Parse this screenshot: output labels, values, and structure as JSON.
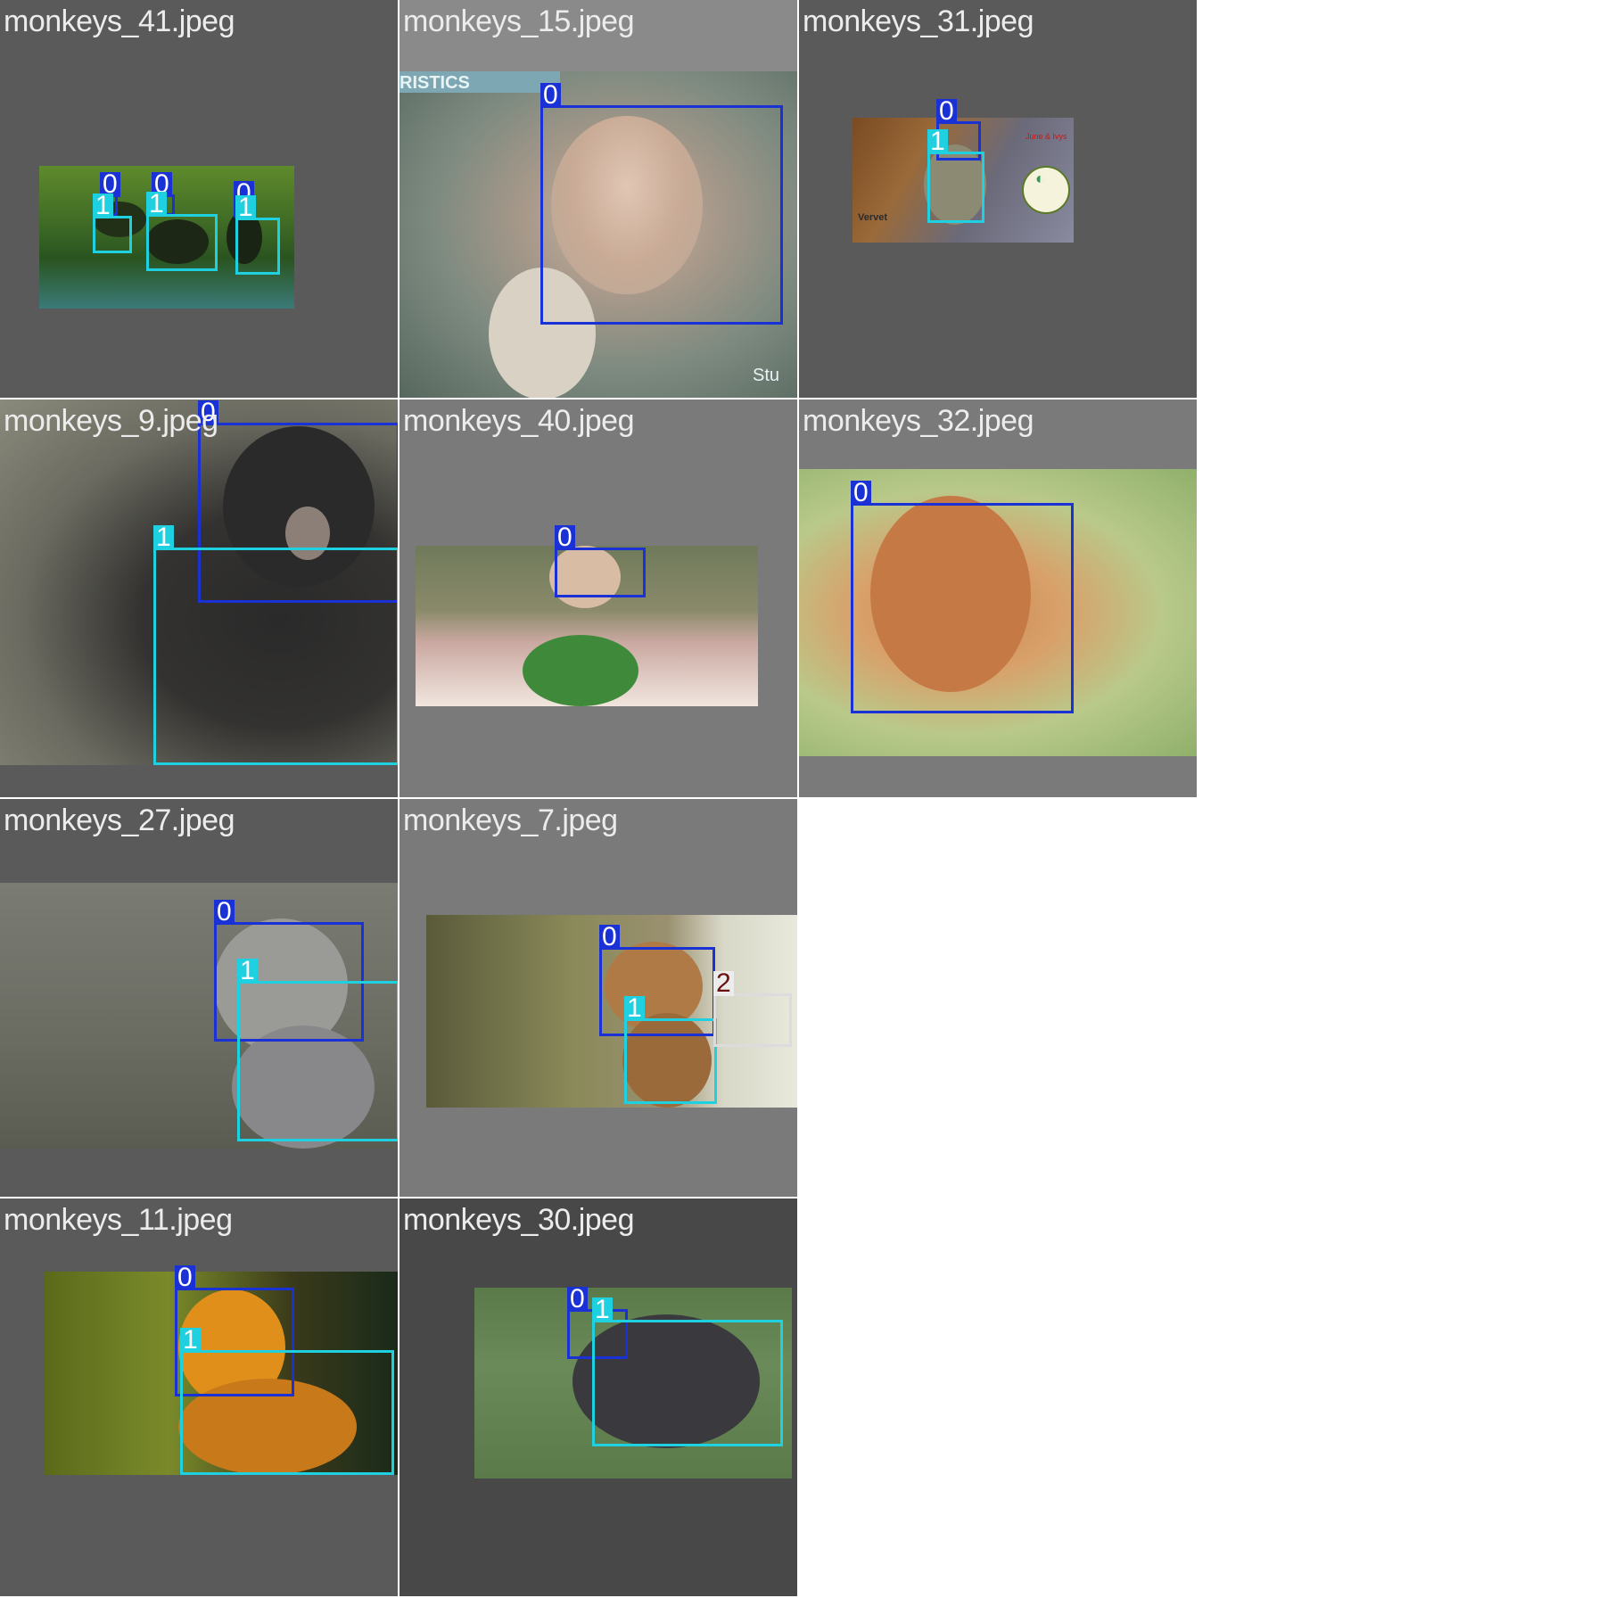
{
  "tiles": [
    {
      "title": "monkeys_41.jpeg",
      "labels": [
        "0",
        "0",
        "0",
        "1",
        "1",
        "1"
      ]
    },
    {
      "title": "monkeys_15.jpeg",
      "overlay_text": "RISTICS",
      "watermark": "Stu",
      "labels": [
        "0"
      ]
    },
    {
      "title": "monkeys_31.jpeg",
      "sticker_text": "June & Ivys",
      "logo_text": "Vervet",
      "labels": [
        "0",
        "1"
      ]
    },
    {
      "title": "monkeys_9.jpeg",
      "labels": [
        "0",
        "1"
      ]
    },
    {
      "title": "monkeys_40.jpeg",
      "labels": [
        "0"
      ]
    },
    {
      "title": "monkeys_32.jpeg",
      "labels": [
        "0"
      ]
    },
    {
      "title": "monkeys_27.jpeg",
      "labels": [
        "0",
        "1"
      ]
    },
    {
      "title": "monkeys_7.jpeg",
      "labels": [
        "0",
        "1",
        "2"
      ]
    },
    {
      "title": "monkeys_11.jpeg",
      "labels": [
        "0",
        "1"
      ]
    },
    {
      "title": "monkeys_30.jpeg",
      "labels": [
        "0",
        "1"
      ]
    }
  ],
  "colors": {
    "class_0": "#1a31d6",
    "class_1": "#1fd0e0",
    "class_2": "#dcdcdc",
    "class_2_label_text": "#6b1010"
  }
}
